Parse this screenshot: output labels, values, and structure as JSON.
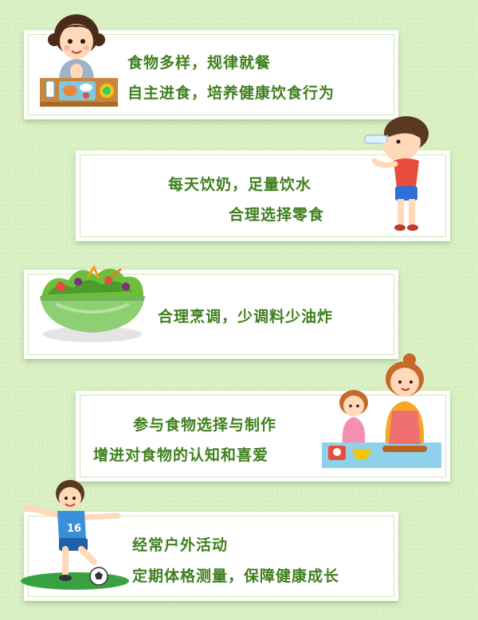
{
  "cards": [
    {
      "lines": [
        "食物多样，规律就餐",
        "自主进食，培养健康饮食行为"
      ]
    },
    {
      "lines": [
        "每天饮奶，足量饮水",
        "合理选择零食"
      ]
    },
    {
      "lines": [
        "合理烹调，少调料少油炸"
      ]
    },
    {
      "lines": [
        "参与食物选择与制作",
        "增进对食物的认知和喜爱"
      ]
    },
    {
      "lines": [
        "经常户外活动",
        "定期体格测量，保障健康成长"
      ]
    }
  ],
  "colors": {
    "background": "#d8efc1",
    "text": "#3f7f1e",
    "card": "#ffffff"
  },
  "icons": [
    "girl-eating-icon",
    "boy-drinking-water-icon",
    "salad-bowl-icon",
    "mother-child-cooking-icon",
    "boy-playing-soccer-icon"
  ],
  "jersey_number": "16"
}
